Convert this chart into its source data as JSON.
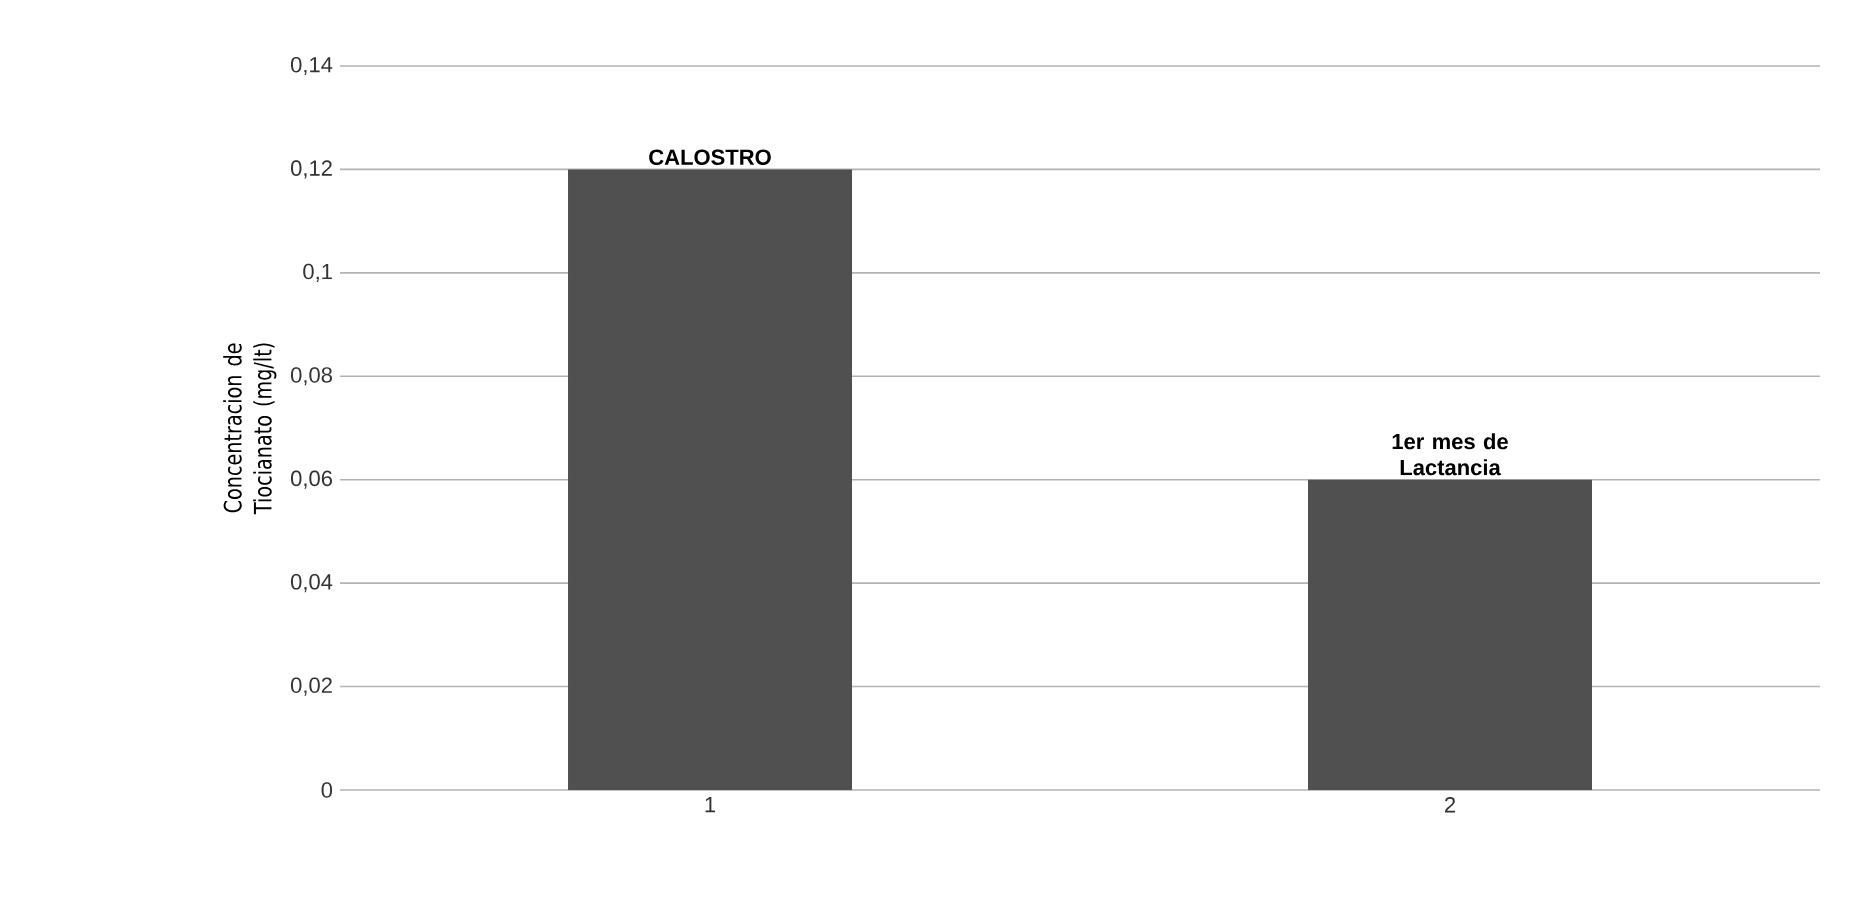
{
  "chart_data": {
    "type": "bar",
    "ylabel": "Concentracion de Tiocianato (mg/lt)",
    "categories": [
      "1",
      "2"
    ],
    "values": [
      0.12,
      0.06
    ],
    "color": "#505050",
    "ylim": [
      0,
      0.14
    ],
    "yticks": [
      0,
      {
        "value": 0.02,
        "label": "0,02"
      },
      {
        "value": 0.04,
        "label": "0,04"
      },
      {
        "value": 0.06,
        "label": "0,06"
      },
      {
        "value": 0.08,
        "label": "0,08"
      },
      {
        "value": 0.1,
        "label": "0,1"
      },
      {
        "value": 0.12,
        "label": "0,12"
      },
      {
        "value": 0.14,
        "label": "0,14"
      }
    ],
    "grid": "y",
    "annotations": [
      {
        "text": "CALOSTRO",
        "x": "1",
        "y": 0.12
      },
      {
        "text": "1er mes de Lactancia",
        "x": "2",
        "y": 0.06
      }
    ]
  }
}
